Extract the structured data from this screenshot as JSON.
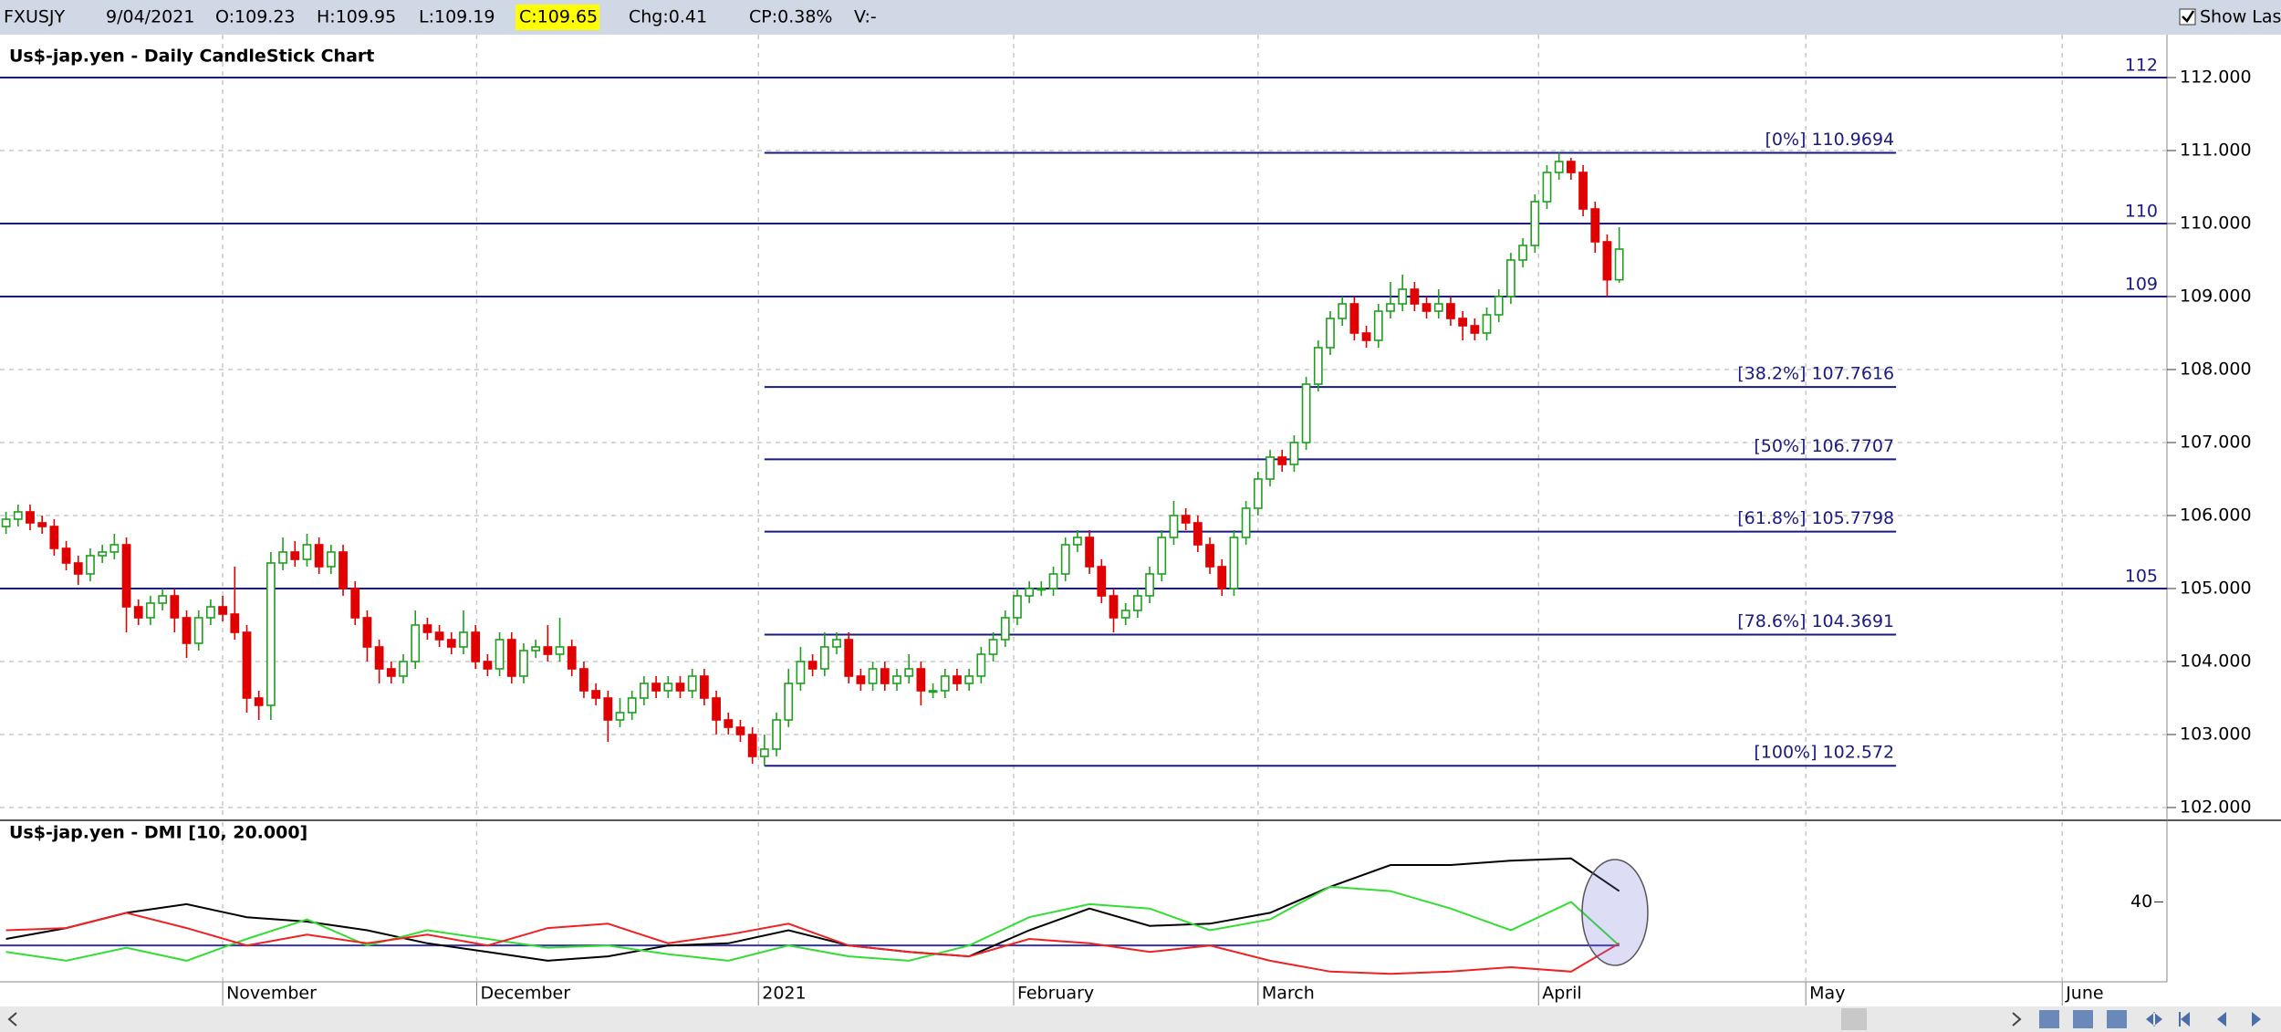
{
  "toolbar": {
    "symbol": "FXUSJY",
    "date": "9/04/2021",
    "open": "O:109.23",
    "high": "H:109.95",
    "low": "L:109.19",
    "close": "C:109.65",
    "change": "Chg:0.41",
    "change_pct": "CP:0.38%",
    "volume": "V:-",
    "show_last": "Show Last"
  },
  "chart_data": [
    {
      "type": "candlestick",
      "title": "Us$-jap.yen - Daily CandleStick Chart",
      "up_color": "#1f9e1f",
      "down_color": "#e00000",
      "line_color": "#1a1a80",
      "grid": true,
      "xlim": [
        -0.5,
        179.5
      ],
      "ylim": [
        101.85,
        112.5
      ],
      "yticks": [
        {
          "value": 102,
          "label": "102.000"
        },
        {
          "value": 103,
          "label": "103.000"
        },
        {
          "value": 104,
          "label": "104.000"
        },
        {
          "value": 105,
          "label": "105.000"
        },
        {
          "value": 106,
          "label": "106.000"
        },
        {
          "value": 107,
          "label": "107.000"
        },
        {
          "value": 108,
          "label": "108.000"
        },
        {
          "value": 109,
          "label": "109.000"
        },
        {
          "value": 110,
          "label": "110.000"
        },
        {
          "value": 111,
          "label": "111.000"
        },
        {
          "value": 112,
          "label": "112.000"
        }
      ],
      "hlines": [
        {
          "value": 112,
          "label": "112"
        },
        {
          "value": 110,
          "label": "110"
        },
        {
          "value": 109,
          "label": "109"
        },
        {
          "value": 105,
          "label": "105"
        }
      ],
      "fib_range": [
        63,
        157
      ],
      "fib_levels": [
        {
          "value": 110.9694,
          "label": "[0%] 110.9694"
        },
        {
          "value": 107.7616,
          "label": "[38.2%] 107.7616"
        },
        {
          "value": 106.7707,
          "label": "[50%] 106.7707"
        },
        {
          "value": 105.7798,
          "label": "[61.8%] 105.7798"
        },
        {
          "value": 104.3691,
          "label": "[78.6%] 104.3691"
        },
        {
          "value": 102.572,
          "label": "[100%] 102.572"
        }
      ],
      "candles": [
        [
          105.85,
          106.05,
          105.75,
          105.95
        ],
        [
          105.95,
          106.15,
          105.85,
          106.05
        ],
        [
          106.05,
          106.15,
          105.8,
          105.9
        ],
        [
          105.9,
          106.0,
          105.75,
          105.85
        ],
        [
          105.85,
          105.95,
          105.45,
          105.55
        ],
        [
          105.55,
          105.65,
          105.25,
          105.35
        ],
        [
          105.35,
          105.45,
          105.05,
          105.2
        ],
        [
          105.2,
          105.55,
          105.1,
          105.45
        ],
        [
          105.45,
          105.6,
          105.35,
          105.5
        ],
        [
          105.5,
          105.75,
          105.4,
          105.6
        ],
        [
          105.6,
          105.7,
          104.4,
          104.75
        ],
        [
          104.75,
          104.85,
          104.5,
          104.6
        ],
        [
          104.6,
          104.9,
          104.5,
          104.8
        ],
        [
          104.8,
          105.0,
          104.7,
          104.9
        ],
        [
          104.9,
          105.0,
          104.4,
          104.6
        ],
        [
          104.6,
          104.7,
          104.05,
          104.25
        ],
        [
          104.25,
          104.7,
          104.15,
          104.6
        ],
        [
          104.6,
          104.85,
          104.5,
          104.75
        ],
        [
          104.75,
          104.9,
          104.55,
          104.65
        ],
        [
          104.65,
          105.3,
          104.3,
          104.4
        ],
        [
          104.4,
          104.5,
          103.3,
          103.5
        ],
        [
          103.5,
          103.6,
          103.2,
          103.4
        ],
        [
          103.4,
          105.5,
          103.2,
          105.35
        ],
        [
          105.35,
          105.7,
          105.25,
          105.5
        ],
        [
          105.5,
          105.65,
          105.3,
          105.4
        ],
        [
          105.4,
          105.75,
          105.3,
          105.6
        ],
        [
          105.6,
          105.7,
          105.2,
          105.3
        ],
        [
          105.3,
          105.6,
          105.2,
          105.5
        ],
        [
          105.5,
          105.6,
          104.9,
          105.0
        ],
        [
          105.0,
          105.1,
          104.5,
          104.6
        ],
        [
          104.6,
          104.7,
          104.0,
          104.2
        ],
        [
          104.2,
          104.3,
          103.7,
          103.9
        ],
        [
          103.9,
          104.0,
          103.7,
          103.8
        ],
        [
          103.8,
          104.1,
          103.7,
          104.0
        ],
        [
          104.0,
          104.7,
          103.9,
          104.5
        ],
        [
          104.5,
          104.6,
          104.3,
          104.4
        ],
        [
          104.4,
          104.5,
          104.2,
          104.3
        ],
        [
          104.3,
          104.4,
          104.1,
          104.2
        ],
        [
          104.2,
          104.7,
          104.1,
          104.4
        ],
        [
          104.4,
          104.5,
          103.9,
          104.0
        ],
        [
          104.0,
          104.1,
          103.8,
          103.9
        ],
        [
          103.9,
          104.4,
          103.8,
          104.3
        ],
        [
          104.3,
          104.4,
          103.7,
          103.8
        ],
        [
          103.8,
          104.25,
          103.7,
          104.15
        ],
        [
          104.15,
          104.3,
          104.05,
          104.2
        ],
        [
          104.2,
          104.5,
          104.0,
          104.1
        ],
        [
          104.1,
          104.6,
          104.0,
          104.2
        ],
        [
          104.2,
          104.3,
          103.8,
          103.9
        ],
        [
          103.9,
          104.0,
          103.5,
          103.6
        ],
        [
          103.6,
          103.7,
          103.4,
          103.5
        ],
        [
          103.5,
          103.6,
          102.9,
          103.2
        ],
        [
          103.2,
          103.5,
          103.1,
          103.3
        ],
        [
          103.3,
          103.6,
          103.2,
          103.5
        ],
        [
          103.5,
          103.8,
          103.4,
          103.7
        ],
        [
          103.7,
          103.8,
          103.5,
          103.6
        ],
        [
          103.6,
          103.8,
          103.5,
          103.7
        ],
        [
          103.7,
          103.8,
          103.5,
          103.6
        ],
        [
          103.6,
          103.9,
          103.5,
          103.8
        ],
        [
          103.8,
          103.9,
          103.4,
          103.5
        ],
        [
          103.5,
          103.6,
          103.0,
          103.2
        ],
        [
          103.2,
          103.3,
          103.0,
          103.1
        ],
        [
          103.1,
          103.2,
          102.9,
          103.0
        ],
        [
          103.0,
          103.1,
          102.6,
          102.7
        ],
        [
          102.7,
          103.0,
          102.57,
          102.8
        ],
        [
          102.8,
          103.3,
          102.7,
          103.2
        ],
        [
          103.2,
          103.9,
          103.1,
          103.7
        ],
        [
          103.7,
          104.2,
          103.6,
          104.0
        ],
        [
          104.0,
          104.1,
          103.8,
          103.9
        ],
        [
          103.9,
          104.4,
          103.8,
          104.2
        ],
        [
          104.2,
          104.4,
          104.1,
          104.3
        ],
        [
          104.3,
          104.4,
          103.7,
          103.8
        ],
        [
          103.8,
          103.9,
          103.6,
          103.7
        ],
        [
          103.7,
          104.0,
          103.6,
          103.9
        ],
        [
          103.9,
          104.0,
          103.6,
          103.7
        ],
        [
          103.7,
          103.9,
          103.6,
          103.8
        ],
        [
          103.8,
          104.1,
          103.7,
          103.9
        ],
        [
          103.9,
          104.0,
          103.4,
          103.6
        ],
        [
          103.6,
          103.7,
          103.5,
          103.6
        ],
        [
          103.6,
          103.9,
          103.5,
          103.8
        ],
        [
          103.8,
          103.9,
          103.6,
          103.7
        ],
        [
          103.7,
          103.9,
          103.6,
          103.8
        ],
        [
          103.8,
          104.2,
          103.7,
          104.1
        ],
        [
          104.1,
          104.4,
          104.0,
          104.3
        ],
        [
          104.3,
          104.7,
          104.2,
          104.6
        ],
        [
          104.6,
          105.0,
          104.5,
          104.9
        ],
        [
          104.9,
          105.1,
          104.8,
          105.0
        ],
        [
          105.0,
          105.1,
          104.9,
          105.0
        ],
        [
          105.0,
          105.3,
          104.9,
          105.2
        ],
        [
          105.2,
          105.7,
          105.1,
          105.6
        ],
        [
          105.6,
          105.8,
          105.5,
          105.7
        ],
        [
          105.7,
          105.8,
          105.2,
          105.3
        ],
        [
          105.3,
          105.4,
          104.8,
          104.9
        ],
        [
          104.9,
          105.0,
          104.4,
          104.6
        ],
        [
          104.6,
          104.8,
          104.5,
          104.7
        ],
        [
          104.7,
          105.0,
          104.6,
          104.9
        ],
        [
          104.9,
          105.3,
          104.8,
          105.2
        ],
        [
          105.2,
          105.8,
          105.1,
          105.7
        ],
        [
          105.7,
          106.2,
          105.6,
          106.0
        ],
        [
          106.0,
          106.1,
          105.8,
          105.9
        ],
        [
          105.9,
          106.0,
          105.5,
          105.6
        ],
        [
          105.6,
          105.7,
          105.2,
          105.3
        ],
        [
          105.3,
          105.4,
          104.9,
          105.0
        ],
        [
          105.0,
          105.8,
          104.9,
          105.7
        ],
        [
          105.7,
          106.2,
          105.6,
          106.1
        ],
        [
          106.1,
          106.6,
          106.0,
          106.5
        ],
        [
          106.5,
          106.9,
          106.4,
          106.8
        ],
        [
          106.8,
          106.9,
          106.6,
          106.7
        ],
        [
          106.7,
          107.1,
          106.6,
          107.0
        ],
        [
          107.0,
          107.9,
          106.9,
          107.8
        ],
        [
          107.8,
          108.4,
          107.7,
          108.3
        ],
        [
          108.3,
          108.8,
          108.2,
          108.7
        ],
        [
          108.7,
          109.0,
          108.6,
          108.9
        ],
        [
          108.9,
          109.0,
          108.4,
          108.5
        ],
        [
          108.5,
          108.6,
          108.3,
          108.4
        ],
        [
          108.4,
          108.9,
          108.3,
          108.8
        ],
        [
          108.8,
          109.2,
          108.7,
          108.9
        ],
        [
          108.9,
          109.3,
          108.8,
          109.1
        ],
        [
          109.1,
          109.2,
          108.8,
          108.9
        ],
        [
          108.9,
          109.0,
          108.7,
          108.8
        ],
        [
          108.8,
          109.1,
          108.7,
          108.9
        ],
        [
          108.9,
          109.0,
          108.6,
          108.7
        ],
        [
          108.7,
          108.8,
          108.4,
          108.6
        ],
        [
          108.6,
          108.7,
          108.4,
          108.5
        ],
        [
          108.5,
          108.85,
          108.4,
          108.75
        ],
        [
          108.75,
          109.1,
          108.65,
          109.0
        ],
        [
          109.0,
          109.6,
          108.9,
          109.5
        ],
        [
          109.5,
          109.8,
          109.4,
          109.7
        ],
        [
          109.7,
          110.4,
          109.6,
          110.3
        ],
        [
          110.3,
          110.8,
          110.2,
          110.7
        ],
        [
          110.7,
          110.97,
          110.6,
          110.85
        ],
        [
          110.85,
          110.9,
          110.6,
          110.7
        ],
        [
          110.7,
          110.8,
          110.1,
          110.2
        ],
        [
          110.2,
          110.3,
          109.6,
          109.75
        ],
        [
          109.75,
          109.85,
          109.0,
          109.23
        ],
        [
          109.23,
          109.95,
          109.19,
          109.65
        ]
      ]
    },
    {
      "type": "line",
      "title": "Us$-jap.yen - DMI [10, 20.000]",
      "grid": true,
      "xlim": [
        -0.5,
        179.5
      ],
      "ylim": [
        3.3,
        76.7
      ],
      "yticks": [
        40
      ],
      "level": 20,
      "level_color": "#3333aa",
      "xticks": [
        {
          "value": 18,
          "label": "November"
        },
        {
          "value": 39.1,
          "label": "December"
        },
        {
          "value": 62.5,
          "label": "2021"
        },
        {
          "value": 83.7,
          "label": "February"
        },
        {
          "value": 104,
          "label": "March"
        },
        {
          "value": 127.3,
          "label": "April"
        },
        {
          "value": 149.5,
          "label": "May"
        },
        {
          "value": 170.8,
          "label": "June"
        }
      ],
      "x": [
        0,
        5,
        10,
        15,
        20,
        25,
        30,
        35,
        40,
        45,
        50,
        55,
        60,
        65,
        70,
        75,
        80,
        85,
        90,
        95,
        100,
        105,
        110,
        115,
        120,
        125,
        130,
        134
      ],
      "series": [
        {
          "color": "#000000",
          "values": [
            23,
            28,
            35,
            39,
            33,
            31,
            27,
            21,
            17,
            13,
            15,
            20,
            21,
            27,
            20,
            17,
            15,
            27,
            37,
            29,
            30,
            35,
            47,
            57,
            57,
            59,
            60,
            45
          ]
        },
        {
          "color": "#33dd33",
          "values": [
            17,
            13,
            19,
            13,
            23,
            32,
            20,
            27,
            23,
            19,
            20,
            16,
            13,
            20,
            15,
            13,
            20,
            33,
            39,
            37,
            27,
            32,
            47,
            45,
            37,
            27,
            40,
            20
          ]
        },
        {
          "color": "#ee2222",
          "values": [
            27,
            28,
            35,
            28,
            20,
            25,
            21,
            25,
            20,
            28,
            30,
            21,
            25,
            30,
            20,
            17,
            15,
            23,
            21,
            17,
            20,
            13,
            8,
            7,
            8,
            10,
            8,
            21
          ]
        }
      ]
    }
  ]
}
